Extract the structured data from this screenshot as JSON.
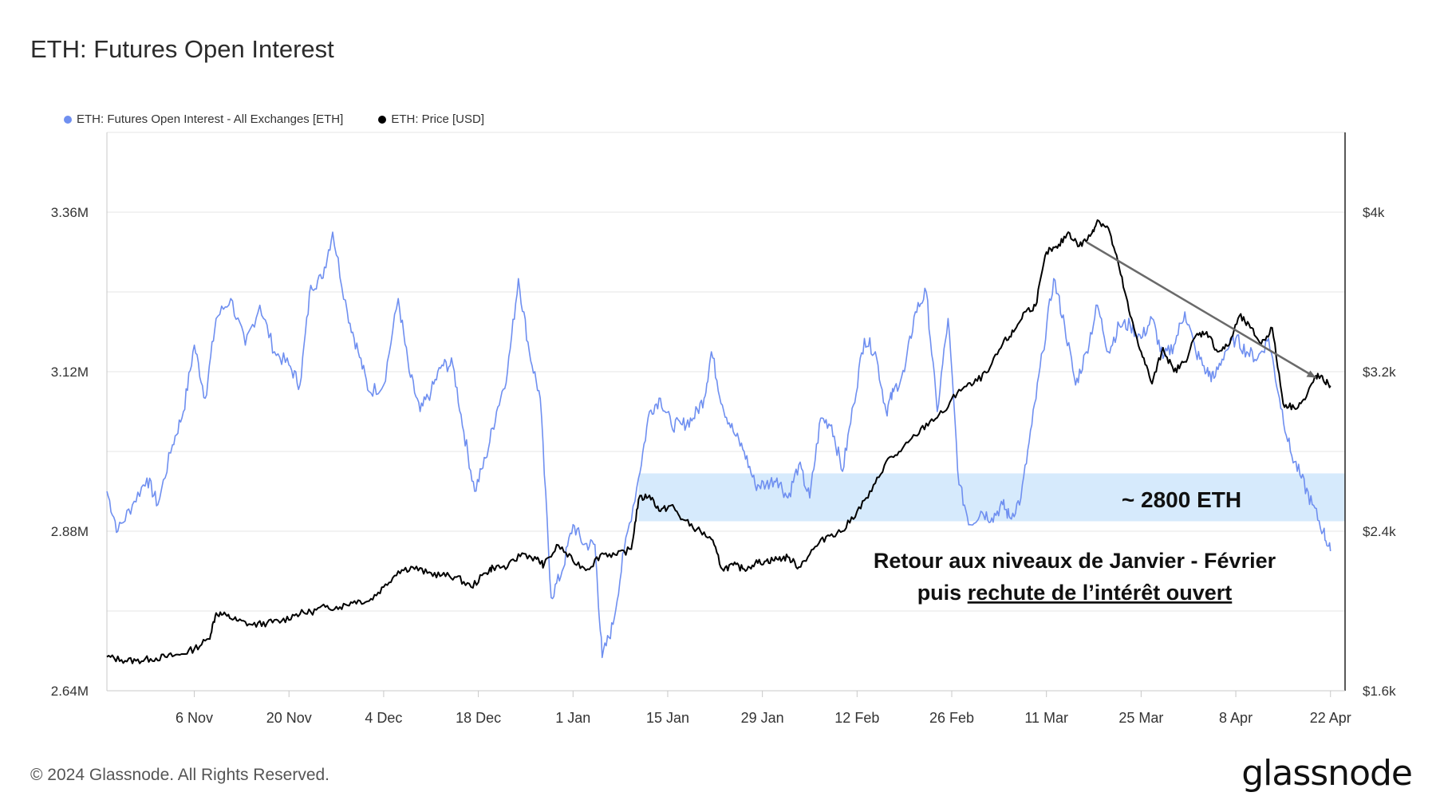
{
  "chart_data": {
    "type": "line",
    "title": "ETH: Futures Open Interest",
    "series": [
      {
        "name": "ETH: Futures Open Interest - All Exchanges [ETH]",
        "color": "#6f8ff0",
        "axis": "left",
        "points": [
          [
            0,
            2940000
          ],
          [
            3,
            2880000
          ],
          [
            7,
            2920000
          ],
          [
            11,
            2960000
          ],
          [
            14,
            2920000
          ],
          [
            18,
            3010000
          ],
          [
            21,
            3060000
          ],
          [
            24,
            3160000
          ],
          [
            27,
            3080000
          ],
          [
            30,
            3200000
          ],
          [
            34,
            3230000
          ],
          [
            38,
            3160000
          ],
          [
            42,
            3220000
          ],
          [
            46,
            3150000
          ],
          [
            50,
            3130000
          ],
          [
            53,
            3100000
          ],
          [
            56,
            3250000
          ],
          [
            59,
            3260000
          ],
          [
            62,
            3330000
          ],
          [
            66,
            3210000
          ],
          [
            69,
            3150000
          ],
          [
            72,
            3090000
          ],
          [
            76,
            3100000
          ],
          [
            80,
            3230000
          ],
          [
            83,
            3120000
          ],
          [
            86,
            3060000
          ],
          [
            89,
            3090000
          ],
          [
            92,
            3130000
          ],
          [
            95,
            3130000
          ],
          [
            98,
            3030000
          ],
          [
            101,
            2940000
          ],
          [
            104,
            2990000
          ],
          [
            107,
            3060000
          ],
          [
            110,
            3120000
          ],
          [
            113,
            3260000
          ],
          [
            116,
            3150000
          ],
          [
            119,
            3080000
          ],
          [
            122,
            2780000
          ],
          [
            125,
            2820000
          ],
          [
            128,
            2890000
          ],
          [
            131,
            2860000
          ],
          [
            134,
            2860000
          ],
          [
            136,
            2690000
          ],
          [
            139,
            2740000
          ],
          [
            142,
            2850000
          ],
          [
            146,
            2960000
          ],
          [
            149,
            3060000
          ],
          [
            152,
            3080000
          ],
          [
            155,
            3040000
          ],
          [
            158,
            3040000
          ],
          [
            161,
            3050000
          ],
          [
            164,
            3080000
          ],
          [
            166,
            3150000
          ],
          [
            169,
            3070000
          ],
          [
            172,
            3030000
          ],
          [
            175,
            3000000
          ],
          [
            178,
            2950000
          ],
          [
            181,
            2950000
          ],
          [
            184,
            2960000
          ],
          [
            187,
            2930000
          ],
          [
            190,
            2980000
          ],
          [
            193,
            2930000
          ],
          [
            196,
            3050000
          ],
          [
            199,
            3040000
          ],
          [
            202,
            2970000
          ],
          [
            205,
            3070000
          ],
          [
            208,
            3170000
          ],
          [
            211,
            3150000
          ],
          [
            214,
            3060000
          ],
          [
            216,
            3090000
          ],
          [
            219,
            3120000
          ],
          [
            222,
            3210000
          ],
          [
            225,
            3240000
          ],
          [
            228,
            3060000
          ],
          [
            231,
            3200000
          ],
          [
            234,
            2950000
          ],
          [
            237,
            2890000
          ],
          [
            240,
            2910000
          ],
          [
            243,
            2900000
          ],
          [
            246,
            2920000
          ],
          [
            248,
            2900000
          ],
          [
            251,
            2930000
          ],
          [
            254,
            3040000
          ],
          [
            257,
            3150000
          ],
          [
            260,
            3260000
          ],
          [
            263,
            3190000
          ],
          [
            266,
            3100000
          ],
          [
            269,
            3150000
          ],
          [
            272,
            3220000
          ],
          [
            275,
            3150000
          ],
          [
            278,
            3190000
          ],
          [
            281,
            3190000
          ],
          [
            284,
            3170000
          ],
          [
            287,
            3200000
          ],
          [
            290,
            3140000
          ],
          [
            293,
            3160000
          ],
          [
            296,
            3210000
          ],
          [
            299,
            3150000
          ],
          [
            302,
            3120000
          ],
          [
            304,
            3110000
          ],
          [
            307,
            3150000
          ],
          [
            310,
            3170000
          ],
          [
            313,
            3150000
          ],
          [
            316,
            3140000
          ],
          [
            319,
            3170000
          ],
          [
            322,
            3080000
          ],
          [
            325,
            3000000
          ],
          [
            328,
            2960000
          ],
          [
            331,
            2920000
          ],
          [
            334,
            2880000
          ],
          [
            336,
            2850000
          ]
        ]
      },
      {
        "name": "ETH: Price [USD]",
        "color": "#000000",
        "axis": "right",
        "points": [
          [
            0,
            1770
          ],
          [
            4,
            1755
          ],
          [
            8,
            1750
          ],
          [
            12,
            1760
          ],
          [
            16,
            1770
          ],
          [
            20,
            1780
          ],
          [
            24,
            1810
          ],
          [
            28,
            1860
          ],
          [
            30,
            1990
          ],
          [
            33,
            1975
          ],
          [
            36,
            1950
          ],
          [
            40,
            1930
          ],
          [
            44,
            1940
          ],
          [
            48,
            1950
          ],
          [
            52,
            1985
          ],
          [
            56,
            1995
          ],
          [
            60,
            2020
          ],
          [
            64,
            2020
          ],
          [
            68,
            2050
          ],
          [
            72,
            2050
          ],
          [
            76,
            2120
          ],
          [
            80,
            2200
          ],
          [
            84,
            2220
          ],
          [
            88,
            2190
          ],
          [
            92,
            2180
          ],
          [
            96,
            2170
          ],
          [
            100,
            2120
          ],
          [
            104,
            2190
          ],
          [
            106,
            2220
          ],
          [
            110,
            2220
          ],
          [
            114,
            2290
          ],
          [
            118,
            2260
          ],
          [
            120,
            2230
          ],
          [
            124,
            2330
          ],
          [
            128,
            2250
          ],
          [
            132,
            2210
          ],
          [
            136,
            2290
          ],
          [
            140,
            2280
          ],
          [
            144,
            2310
          ],
          [
            146,
            2560
          ],
          [
            149,
            2580
          ],
          [
            152,
            2500
          ],
          [
            155,
            2530
          ],
          [
            158,
            2460
          ],
          [
            162,
            2410
          ],
          [
            166,
            2360
          ],
          [
            169,
            2210
          ],
          [
            172,
            2230
          ],
          [
            175,
            2210
          ],
          [
            178,
            2240
          ],
          [
            181,
            2250
          ],
          [
            184,
            2260
          ],
          [
            187,
            2270
          ],
          [
            190,
            2220
          ],
          [
            194,
            2310
          ],
          [
            198,
            2380
          ],
          [
            202,
            2400
          ],
          [
            206,
            2500
          ],
          [
            210,
            2600
          ],
          [
            214,
            2750
          ],
          [
            218,
            2800
          ],
          [
            222,
            2880
          ],
          [
            226,
            2950
          ],
          [
            230,
            3000
          ],
          [
            234,
            3110
          ],
          [
            238,
            3140
          ],
          [
            242,
            3200
          ],
          [
            246,
            3340
          ],
          [
            249,
            3400
          ],
          [
            252,
            3500
          ],
          [
            255,
            3530
          ],
          [
            258,
            3800
          ],
          [
            261,
            3820
          ],
          [
            264,
            3900
          ],
          [
            267,
            3830
          ],
          [
            270,
            3880
          ],
          [
            272,
            3960
          ],
          [
            275,
            3920
          ],
          [
            278,
            3720
          ],
          [
            281,
            3480
          ],
          [
            284,
            3300
          ],
          [
            287,
            3140
          ],
          [
            290,
            3320
          ],
          [
            293,
            3200
          ],
          [
            296,
            3250
          ],
          [
            299,
            3380
          ],
          [
            302,
            3400
          ],
          [
            305,
            3300
          ],
          [
            308,
            3330
          ],
          [
            311,
            3480
          ],
          [
            314,
            3420
          ],
          [
            317,
            3340
          ],
          [
            320,
            3420
          ],
          [
            323,
            3040
          ],
          [
            326,
            3020
          ],
          [
            329,
            3060
          ],
          [
            332,
            3180
          ],
          [
            334,
            3160
          ],
          [
            336,
            3130
          ]
        ]
      }
    ],
    "x_axis": {
      "range_days": [
        0,
        336
      ],
      "ticks": [
        {
          "day": 24,
          "label": "6 Nov"
        },
        {
          "day": 50,
          "label": "20 Nov"
        },
        {
          "day": 76,
          "label": "4 Dec"
        },
        {
          "day": 102,
          "label": "18 Dec"
        },
        {
          "day": 128,
          "label": "1 Jan"
        },
        {
          "day": 154,
          "label": "15 Jan"
        },
        {
          "day": 180,
          "label": "29 Jan"
        },
        {
          "day": 206,
          "label": "12 Feb"
        },
        {
          "day": 232,
          "label": "26 Feb"
        },
        {
          "day": 258,
          "label": "11 Mar"
        },
        {
          "day": 284,
          "label": "25 Mar"
        },
        {
          "day": 310,
          "label": "8 Apr"
        },
        {
          "day": 336,
          "label": "22 Apr"
        }
      ]
    },
    "y_left": {
      "range": [
        2640000,
        3480000
      ],
      "ticks": [
        {
          "value": 2640000,
          "label": "2.64M"
        },
        {
          "value": 2880000,
          "label": "2.88M"
        },
        {
          "value": 3120000,
          "label": "3.12M"
        },
        {
          "value": 3360000,
          "label": "3.36M"
        }
      ],
      "gridlines": [
        2760000,
        3000000,
        3240000,
        3480000
      ]
    },
    "y_right": {
      "range": [
        1600,
        4400
      ],
      "ticks": [
        {
          "value": 1600,
          "label": "$1.6k"
        },
        {
          "value": 2400,
          "label": "$2.4k"
        },
        {
          "value": 3200,
          "label": "$3.2k"
        },
        {
          "value": 4000,
          "label": "$4k"
        }
      ]
    },
    "annotations": {
      "band": {
        "y_from": 2895000,
        "y_to": 2967000,
        "x_from": 146,
        "x_to": 340,
        "label": "~ 2800 ETH",
        "color": "#d6eafc"
      },
      "trendline": {
        "from": [
          269,
          3850
        ],
        "to": [
          332,
          3170
        ],
        "color": "#6a6a6a"
      },
      "note_line1": "Retour aux niveaux de Janvier - Février",
      "note_line2_prefix": "puis ",
      "note_line2_underlined": "rechute de l’intérêt ouvert"
    }
  },
  "footer": {
    "copyright": "© 2024 Glassnode. All Rights Reserved.",
    "brand": "glassnode"
  }
}
